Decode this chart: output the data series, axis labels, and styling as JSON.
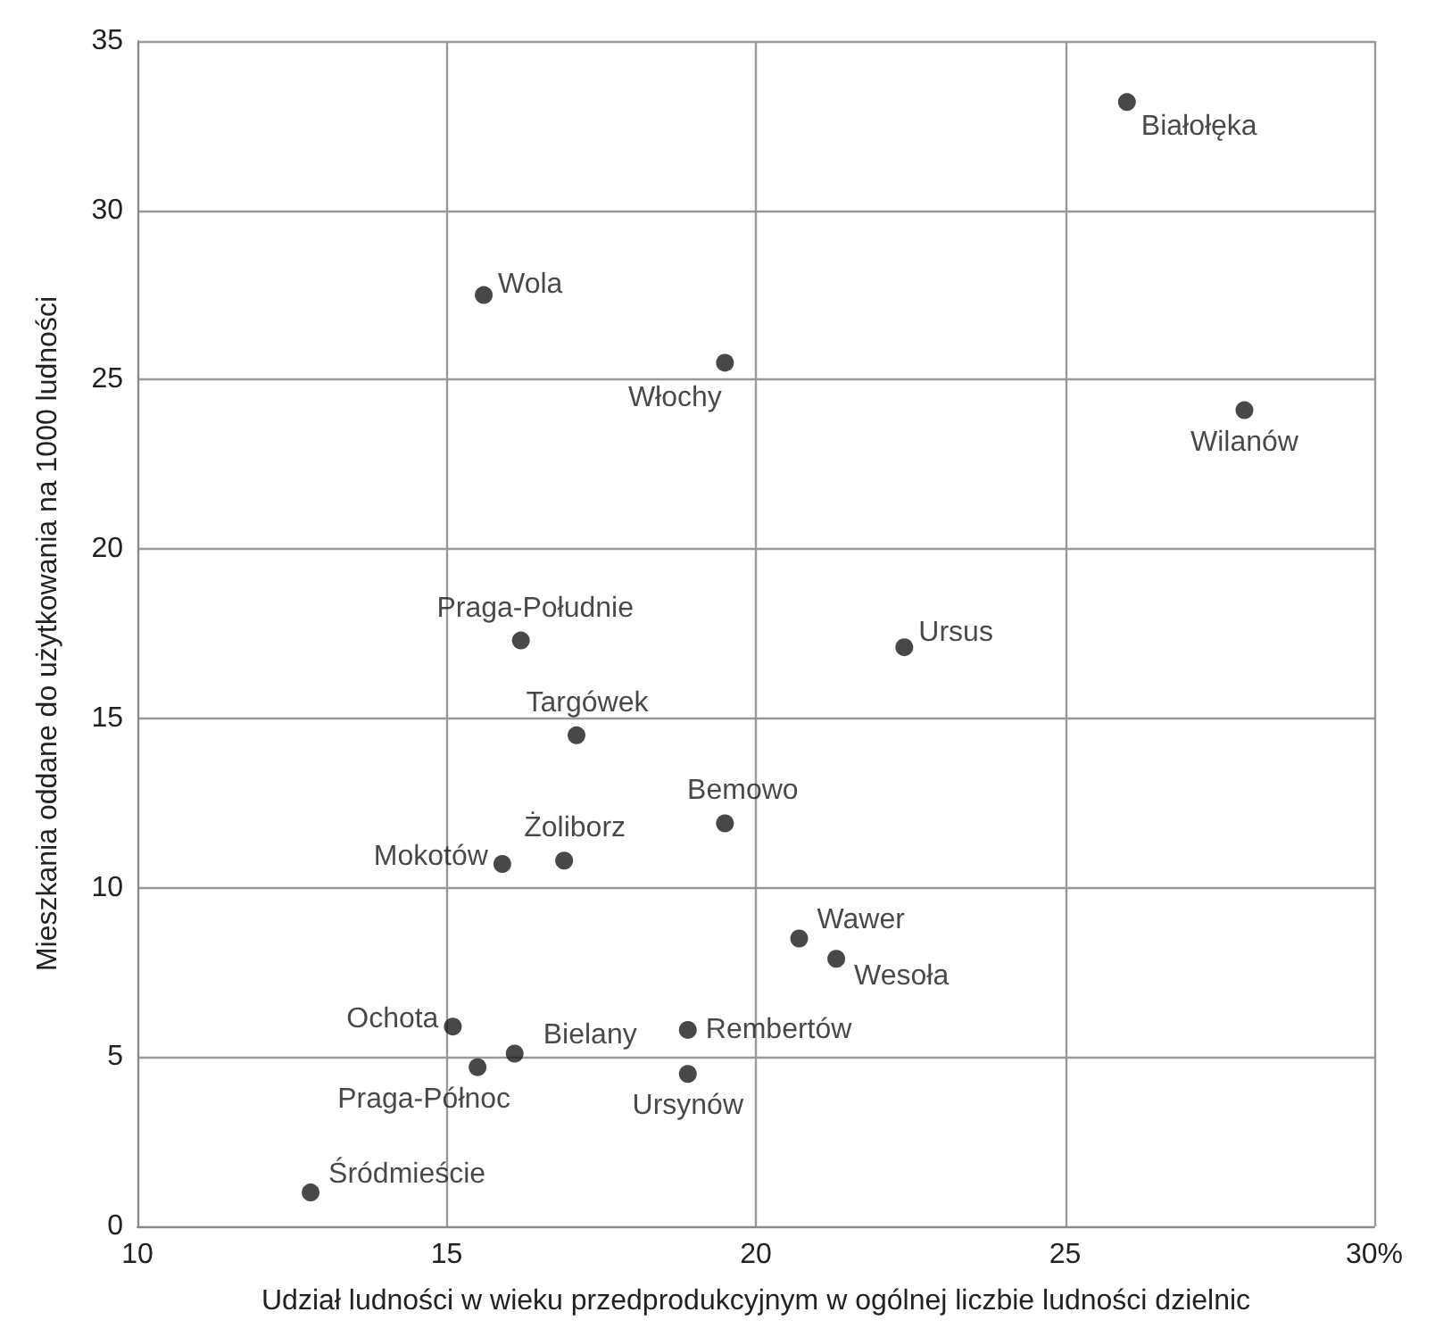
{
  "chart_data": {
    "type": "scatter",
    "xlabel": "Udział ludności w wieku przedprodukcyjnym w ogólnej liczbie ludności dzielnic",
    "ylabel": "Mieszkania oddane do użytkowania na 1000 ludności",
    "x": [
      26.0,
      15.6,
      19.5,
      27.9,
      16.2,
      22.4,
      17.1,
      19.5,
      15.9,
      16.9,
      20.7,
      21.3,
      15.1,
      16.1,
      18.9,
      15.5,
      18.9,
      12.8
    ],
    "values": [
      33.2,
      27.5,
      25.5,
      24.1,
      17.3,
      17.1,
      14.5,
      11.9,
      10.7,
      10.8,
      8.5,
      7.9,
      5.9,
      5.1,
      5.8,
      4.7,
      4.5,
      1.0
    ],
    "color": "#1a1a1a",
    "marker": "circle",
    "xlim": [
      10,
      30
    ],
    "xticks": [
      10,
      15,
      20,
      25,
      {
        "value": 30,
        "label": "30%"
      }
    ],
    "ylim": [
      0,
      35
    ],
    "yticks": [
      0,
      5,
      10,
      15,
      20,
      25,
      30,
      35
    ],
    "grid": true,
    "annotations": [
      {
        "text": "Białołęka",
        "x": 26.0,
        "y": 33.2
      },
      {
        "text": "Wola",
        "x": 15.6,
        "y": 27.5
      },
      {
        "text": "Włochy",
        "x": 19.5,
        "y": 25.5
      },
      {
        "text": "Wilanów",
        "x": 27.9,
        "y": 24.1
      },
      {
        "text": "Praga-Południe",
        "x": 16.2,
        "y": 17.3
      },
      {
        "text": "Ursus",
        "x": 22.4,
        "y": 17.1
      },
      {
        "text": "Targówek",
        "x": 17.1,
        "y": 14.5
      },
      {
        "text": "Bemowo",
        "x": 19.5,
        "y": 11.9
      },
      {
        "text": "Mokotów",
        "x": 15.9,
        "y": 10.7
      },
      {
        "text": "Żoliborz",
        "x": 16.9,
        "y": 10.8
      },
      {
        "text": "Wawer",
        "x": 20.7,
        "y": 8.5
      },
      {
        "text": "Wesoła",
        "x": 21.3,
        "y": 7.9
      },
      {
        "text": "Ochota",
        "x": 15.1,
        "y": 5.9
      },
      {
        "text": "Bielany",
        "x": 16.1,
        "y": 5.1
      },
      {
        "text": "Rembertów",
        "x": 18.9,
        "y": 5.8
      },
      {
        "text": "Praga-Północ",
        "x": 15.5,
        "y": 4.7
      },
      {
        "text": "Ursynów",
        "x": 18.9,
        "y": 4.5
      },
      {
        "text": "Śródmieście",
        "x": 12.8,
        "y": 1.0
      }
    ]
  }
}
